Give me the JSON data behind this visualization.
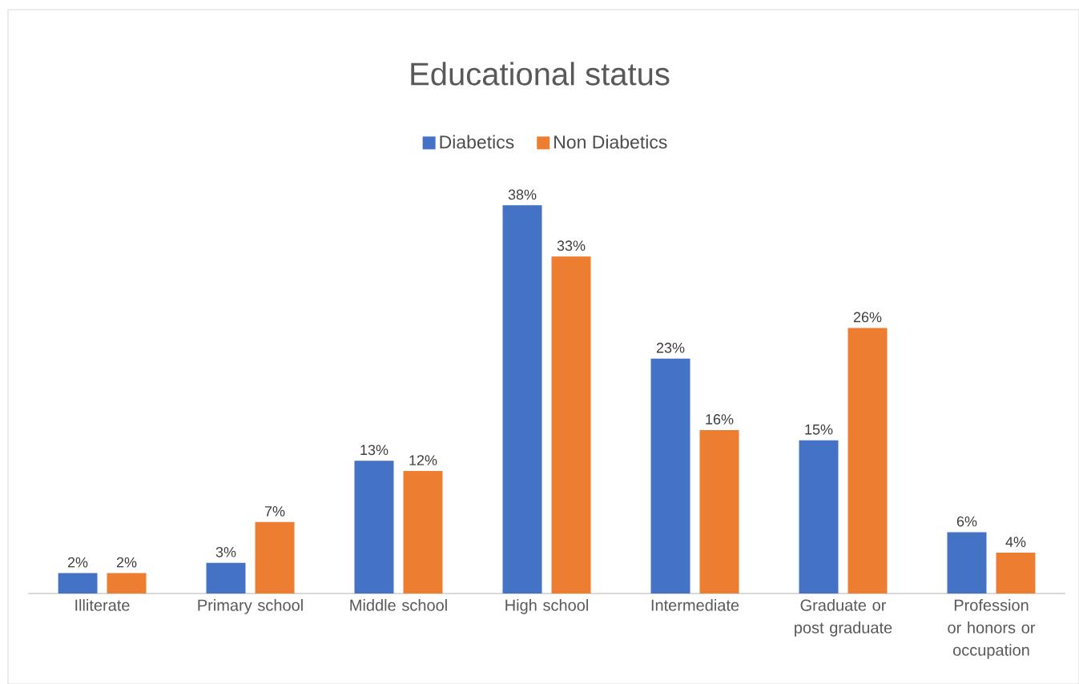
{
  "chart_data": {
    "type": "bar",
    "title": "Educational status",
    "categories": [
      "Illiterate",
      "Primary school",
      "Middle school",
      "High school",
      "Intermediate",
      "Graduate or post graduate",
      "Profession or honors or occupation"
    ],
    "series": [
      {
        "name": "Diabetics",
        "color": "#4472c4",
        "values": [
          2,
          3,
          13,
          38,
          23,
          15,
          6
        ],
        "value_labels": [
          "2%",
          "3%",
          "13%",
          "38%",
          "23%",
          "15%",
          "6%"
        ]
      },
      {
        "name": "Non Diabetics",
        "color": "#ed7d31",
        "values": [
          2,
          7,
          12,
          33,
          16,
          26,
          4
        ],
        "value_labels": [
          "2%",
          "7%",
          "12%",
          "33%",
          "16%",
          "26%",
          "4%"
        ]
      }
    ],
    "legend": "top"
  }
}
